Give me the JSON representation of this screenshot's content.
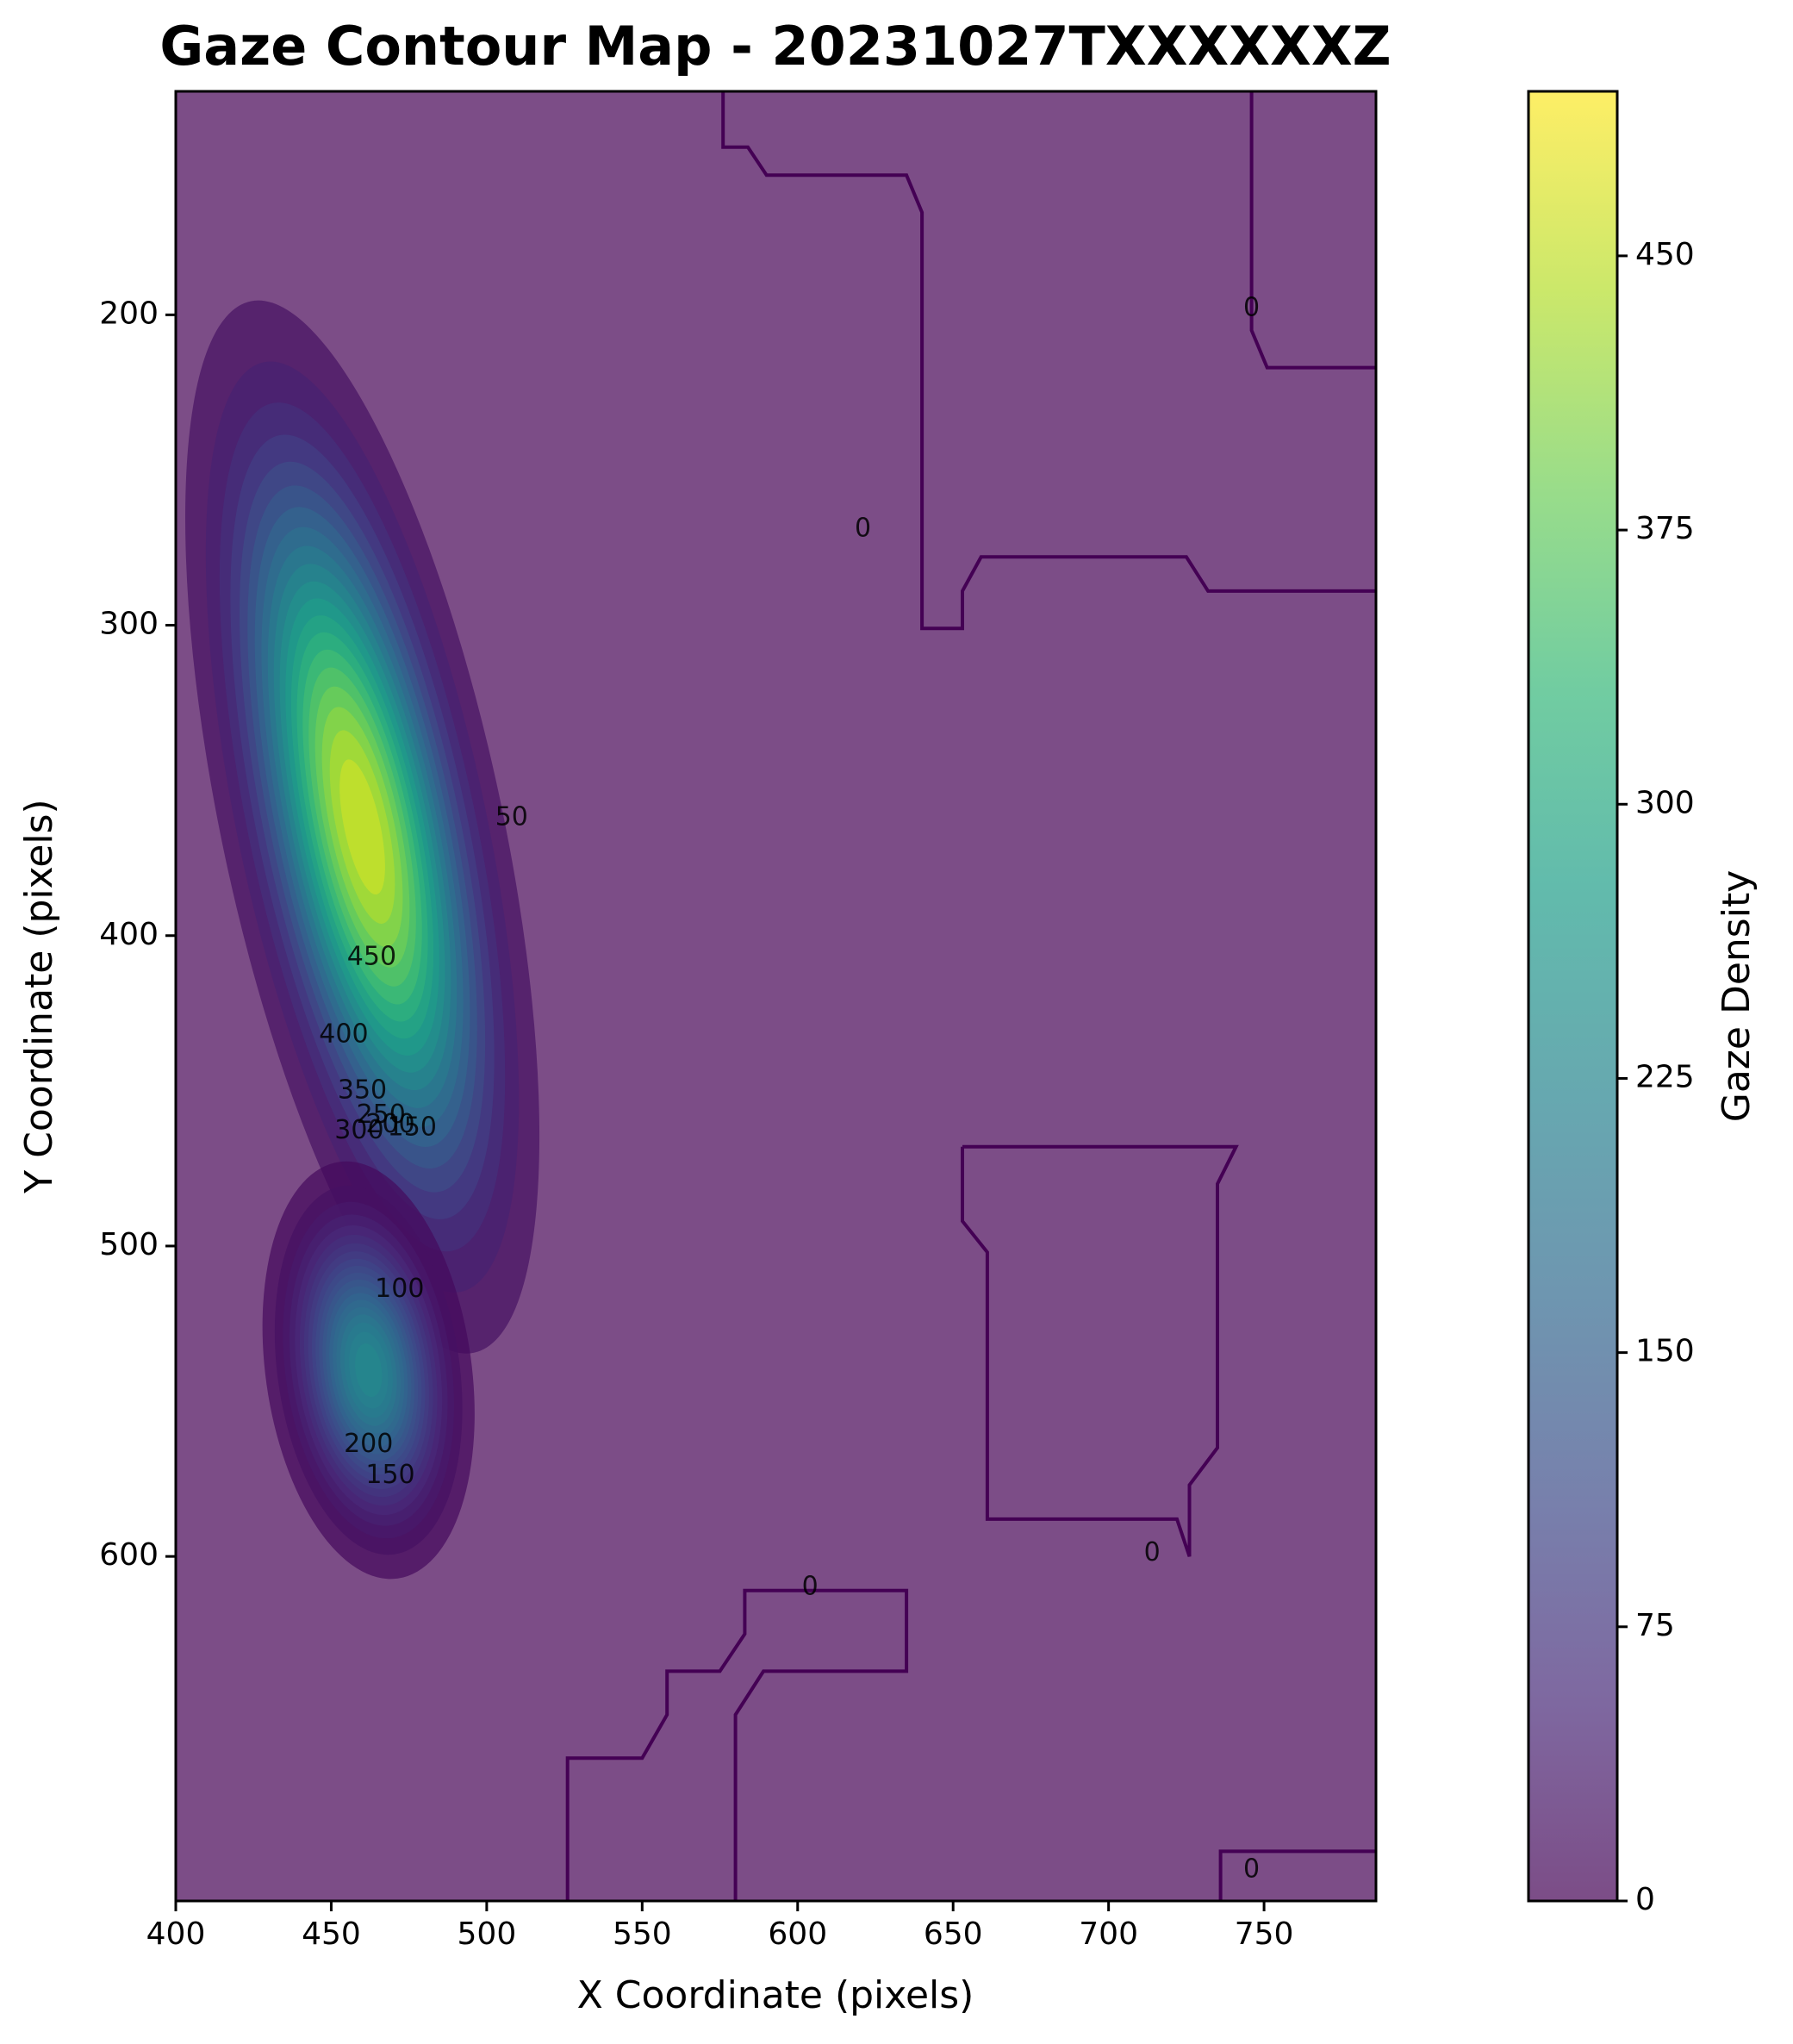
{
  "chart_data": {
    "type": "contour",
    "title": "Gaze Contour Map - 20231027TXXXXXXZ",
    "xlabel": "X Coordinate (pixels)",
    "ylabel": "Y Coordinate (pixels)",
    "xlim": [
      400,
      786
    ],
    "ylim": [
      711,
      128
    ],
    "y_inverted": true,
    "xticks": [
      400,
      450,
      500,
      550,
      600,
      650,
      700,
      750
    ],
    "yticks": [
      200,
      300,
      400,
      500,
      600
    ],
    "grid": false,
    "colormap": "viridis",
    "alpha": 0.7,
    "colorbar": {
      "label": "Gaze Density",
      "ticks": [
        0,
        75,
        150,
        225,
        300,
        375,
        450
      ],
      "range": [
        0,
        495
      ]
    },
    "peaks": [
      {
        "x": 460,
        "y": 365,
        "density": 480
      },
      {
        "x": 462,
        "y": 540,
        "density": 240
      }
    ],
    "contour_labels": [
      {
        "text": "0",
        "x": 746,
        "y": 198
      },
      {
        "text": "0",
        "x": 621,
        "y": 269
      },
      {
        "text": "50",
        "x": 508,
        "y": 362
      },
      {
        "text": "450",
        "x": 463,
        "y": 407
      },
      {
        "text": "400",
        "x": 454,
        "y": 432
      },
      {
        "text": "350",
        "x": 460,
        "y": 450
      },
      {
        "text": "300",
        "x": 459,
        "y": 463
      },
      {
        "text": "250",
        "x": 466,
        "y": 458
      },
      {
        "text": "200",
        "x": 469,
        "y": 461
      },
      {
        "text": "150",
        "x": 476,
        "y": 462
      },
      {
        "text": "100",
        "x": 472,
        "y": 514
      },
      {
        "text": "200",
        "x": 462,
        "y": 564
      },
      {
        "text": "150",
        "x": 469,
        "y": 574
      },
      {
        "text": "0",
        "x": 714,
        "y": 599
      },
      {
        "text": "0",
        "x": 604,
        "y": 610
      },
      {
        "text": "0",
        "x": 746,
        "y": 701
      }
    ]
  }
}
